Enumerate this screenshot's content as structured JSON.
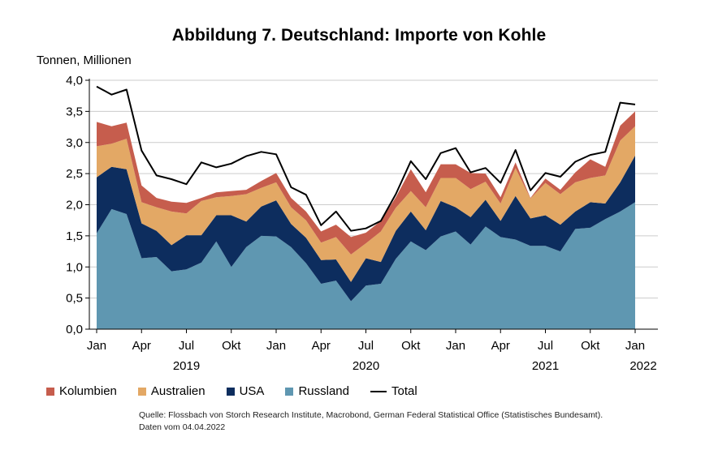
{
  "title": "Abbildung 7. Deutschland: Importe von Kohle",
  "y_unit": "Tonnen, Millionen",
  "colors": {
    "kolumbien": "#c65d4d",
    "australien": "#e3a865",
    "usa": "#0d2d5e",
    "russland": "#5f97b1",
    "total": "#000000",
    "axis": "#000000",
    "grid": "#cccccc"
  },
  "legend": [
    {
      "label": "Kolumbien",
      "color": "#c65d4d",
      "kind": "area"
    },
    {
      "label": "Australien",
      "color": "#e3a865",
      "kind": "area"
    },
    {
      "label": "USA",
      "color": "#0d2d5e",
      "kind": "area"
    },
    {
      "label": "Russland",
      "color": "#5f97b1",
      "kind": "area"
    },
    {
      "label": "Total",
      "color": "#000000",
      "kind": "line"
    }
  ],
  "source": {
    "line1": "Quelle: Flossbach von Storch Research Institute, Macrobond, German Federal Statistical Office (Statistisches Bundesamt).",
    "line2": "Daten vom 04.04.2022"
  },
  "chart_data": {
    "type": "area",
    "stacked": true,
    "title": "Abbildung 7. Deutschland: Importe von Kohle",
    "ylabel": "Tonnen, Millionen",
    "ylim": [
      0,
      4
    ],
    "y_ticks": [
      "0,0",
      "0,5",
      "1,0",
      "1,5",
      "2,0",
      "2,5",
      "3,0",
      "3,5",
      "4,0"
    ],
    "x_ticks": [
      {
        "month_index": 0,
        "label": "Jan"
      },
      {
        "month_index": 3,
        "label": "Apr"
      },
      {
        "month_index": 6,
        "label": "Jul"
      },
      {
        "month_index": 9,
        "label": "Okt"
      },
      {
        "month_index": 12,
        "label": "Jan"
      },
      {
        "month_index": 15,
        "label": "Apr"
      },
      {
        "month_index": 18,
        "label": "Jul"
      },
      {
        "month_index": 21,
        "label": "Okt"
      },
      {
        "month_index": 24,
        "label": "Jan"
      },
      {
        "month_index": 27,
        "label": "Apr"
      },
      {
        "month_index": 30,
        "label": "Jul"
      },
      {
        "month_index": 33,
        "label": "Okt"
      },
      {
        "month_index": 36,
        "label": "Jan"
      }
    ],
    "year_labels": [
      {
        "month_index": 6,
        "label": "2019"
      },
      {
        "month_index": 18,
        "label": "2020"
      },
      {
        "month_index": 30,
        "label": "2021"
      },
      {
        "month_index": 36,
        "label": "2022"
      }
    ],
    "x_start": "2019-01",
    "x_end": "2022-02",
    "series": [
      {
        "name": "Russland",
        "values": [
          1.54,
          1.93,
          1.85,
          1.14,
          1.16,
          0.93,
          0.96,
          1.07,
          1.41,
          1.0,
          1.32,
          1.5,
          1.49,
          1.32,
          1.06,
          0.73,
          0.78,
          0.45,
          0.7,
          0.73,
          1.13,
          1.41,
          1.27,
          1.49,
          1.57,
          1.36,
          1.65,
          1.48,
          1.44,
          1.34,
          1.34,
          1.25,
          1.61,
          1.63,
          1.77,
          1.89,
          2.04
        ]
      },
      {
        "name": "USA",
        "values": [
          0.9,
          0.68,
          0.72,
          0.56,
          0.42,
          0.42,
          0.55,
          0.44,
          0.42,
          0.83,
          0.41,
          0.47,
          0.58,
          0.37,
          0.41,
          0.38,
          0.34,
          0.31,
          0.44,
          0.35,
          0.45,
          0.48,
          0.32,
          0.57,
          0.39,
          0.44,
          0.43,
          0.26,
          0.7,
          0.44,
          0.49,
          0.43,
          0.28,
          0.41,
          0.25,
          0.47,
          0.75
        ]
      },
      {
        "name": "Australien",
        "values": [
          0.5,
          0.37,
          0.49,
          0.34,
          0.38,
          0.54,
          0.35,
          0.55,
          0.29,
          0.31,
          0.44,
          0.3,
          0.29,
          0.27,
          0.28,
          0.28,
          0.36,
          0.44,
          0.24,
          0.49,
          0.37,
          0.33,
          0.37,
          0.37,
          0.47,
          0.45,
          0.29,
          0.28,
          0.45,
          0.32,
          0.52,
          0.49,
          0.47,
          0.39,
          0.45,
          0.67,
          0.47
        ]
      },
      {
        "name": "Kolumbien",
        "values": [
          0.39,
          0.28,
          0.26,
          0.27,
          0.15,
          0.16,
          0.17,
          0.05,
          0.08,
          0.08,
          0.07,
          0.11,
          0.15,
          0.15,
          0.14,
          0.18,
          0.2,
          0.28,
          0.17,
          0.17,
          0.17,
          0.35,
          0.24,
          0.22,
          0.22,
          0.26,
          0.13,
          0.1,
          0.09,
          0.01,
          0.07,
          0.07,
          0.16,
          0.3,
          0.14,
          0.24,
          0.24
        ]
      },
      {
        "name": "Total",
        "values": [
          3.9,
          3.77,
          3.85,
          2.87,
          2.47,
          2.41,
          2.33,
          2.68,
          2.6,
          2.66,
          2.78,
          2.85,
          2.81,
          2.28,
          2.16,
          1.67,
          1.89,
          1.58,
          1.62,
          1.74,
          2.17,
          2.7,
          2.41,
          2.83,
          2.91,
          2.52,
          2.59,
          2.35,
          2.88,
          2.23,
          2.51,
          2.45,
          2.69,
          2.8,
          2.85,
          3.64,
          3.61
        ]
      }
    ]
  }
}
